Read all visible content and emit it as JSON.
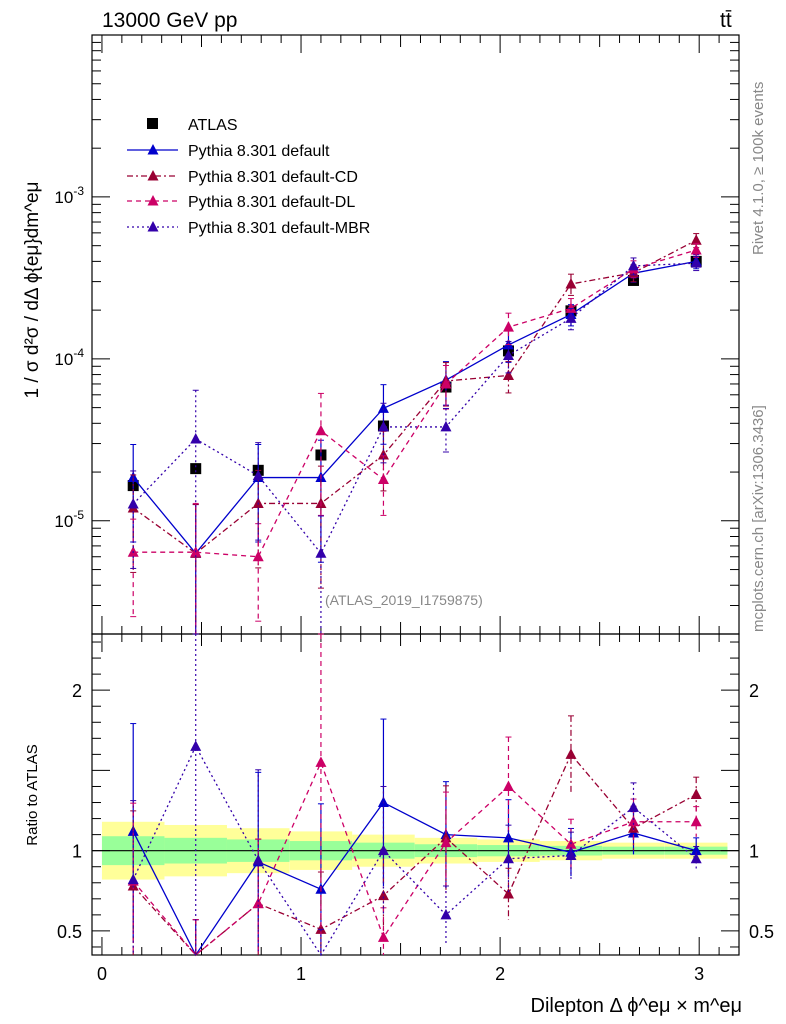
{
  "header": {
    "energy_label": "13000 GeV pp",
    "process_label": "tt̄"
  },
  "side_labels": {
    "rivet": "Rivet 4.1.0, ≥ 100k events",
    "mcplots": "mcplots.cern.ch [arXiv:1306.3436]"
  },
  "analysis_id": "(ATLAS_2019_I1759875)",
  "colors": {
    "atlas": "#000000",
    "default": "#0000cc",
    "cd": "#990033",
    "dl": "#cc0066",
    "mbr": "#3300aa",
    "band_inner": "#99ff99",
    "band_outer": "#ffff99"
  },
  "chart_data": [
    {
      "type": "scatter",
      "panel": "main",
      "ylabel": "1 / σ  d²σ / dΔ ϕ{eμ}dm^eμ",
      "yscale": "log",
      "xlim": [
        -0.05,
        3.2
      ],
      "ylim": [
        2e-06,
        0.01
      ],
      "y_tick_labels": [
        "10^-5",
        "10^-4",
        "10^-3"
      ],
      "x": [
        0.157,
        0.471,
        0.785,
        1.1,
        1.414,
        1.728,
        2.042,
        2.356,
        2.67,
        2.985
      ],
      "legend": [
        "ATLAS",
        "Pythia 8.301 default",
        "Pythia 8.301 default-CD",
        "Pythia 8.301 default-DL",
        "Pythia 8.301 default-MBR"
      ],
      "series": [
        {
          "name": "ATLAS",
          "values": [
            1.65e-05,
            2.1e-05,
            2.05e-05,
            2.55e-05,
            3.85e-05,
            6.7e-05,
            0.000112,
            0.000198,
            0.000305,
            0.0004
          ]
        },
        {
          "name": "Pythia 8.301 default",
          "values": [
            1.85e-05,
            6.3e-06,
            1.85e-05,
            1.85e-05,
            4.95e-05,
            7.4e-05,
            0.000122,
            0.000188,
            0.000338,
            0.0004
          ]
        },
        {
          "name": "Pythia 8.301 default-CD",
          "values": [
            1.2e-05,
            6.3e-06,
            1.28e-05,
            1.28e-05,
            2.55e-05,
            7.3e-05,
            7.9e-05,
            0.00029,
            0.00034,
            0.00054
          ]
        },
        {
          "name": "Pythia 8.301 default-DL",
          "values": [
            6.4e-06,
            6.4e-06,
            6e-06,
            3.6e-05,
            1.8e-05,
            7e-05,
            0.000157,
            0.000205,
            0.00036,
            0.00047
          ]
        },
        {
          "name": "Pythia 8.301 default-MBR",
          "values": [
            1.27e-05,
            3.2e-05,
            1.9e-05,
            6.3e-06,
            3.8e-05,
            3.8e-05,
            0.000105,
            0.000178,
            0.000375,
            0.00039
          ]
        }
      ]
    },
    {
      "type": "scatter",
      "panel": "ratio",
      "ylabel": "Ratio to ATLAS",
      "xlabel": "Dilepton Δ ϕ^eμ × m^eμ",
      "xlim": [
        -0.05,
        3.2
      ],
      "ylim": [
        0.35,
        2.35
      ],
      "x_tick_labels": [
        "0",
        "1",
        "2",
        "3"
      ],
      "y_tick_labels": [
        "0.5",
        "1",
        "2"
      ],
      "x": [
        0.157,
        0.471,
        0.785,
        1.1,
        1.414,
        1.728,
        2.042,
        2.356,
        2.67,
        2.985
      ],
      "series": [
        {
          "name": "Pythia 8.301 default",
          "values": [
            1.12,
            0.3,
            0.93,
            0.76,
            1.3,
            1.1,
            1.08,
            0.99,
            1.11,
            1.0
          ]
        },
        {
          "name": "Pythia 8.301 default-CD",
          "values": [
            0.78,
            0.3,
            0.67,
            0.51,
            0.72,
            1.08,
            0.73,
            1.6,
            1.14,
            1.35
          ]
        },
        {
          "name": "Pythia 8.301 default-DL",
          "values": [
            0.81,
            0.3,
            0.67,
            1.55,
            0.46,
            1.05,
            1.4,
            1.04,
            1.18,
            1.18
          ]
        },
        {
          "name": "Pythia 8.301 default-MBR",
          "values": [
            0.82,
            1.65,
            0.94,
            0.3,
            1.0,
            0.6,
            0.95,
            0.97,
            1.27,
            0.95
          ]
        }
      ]
    }
  ]
}
